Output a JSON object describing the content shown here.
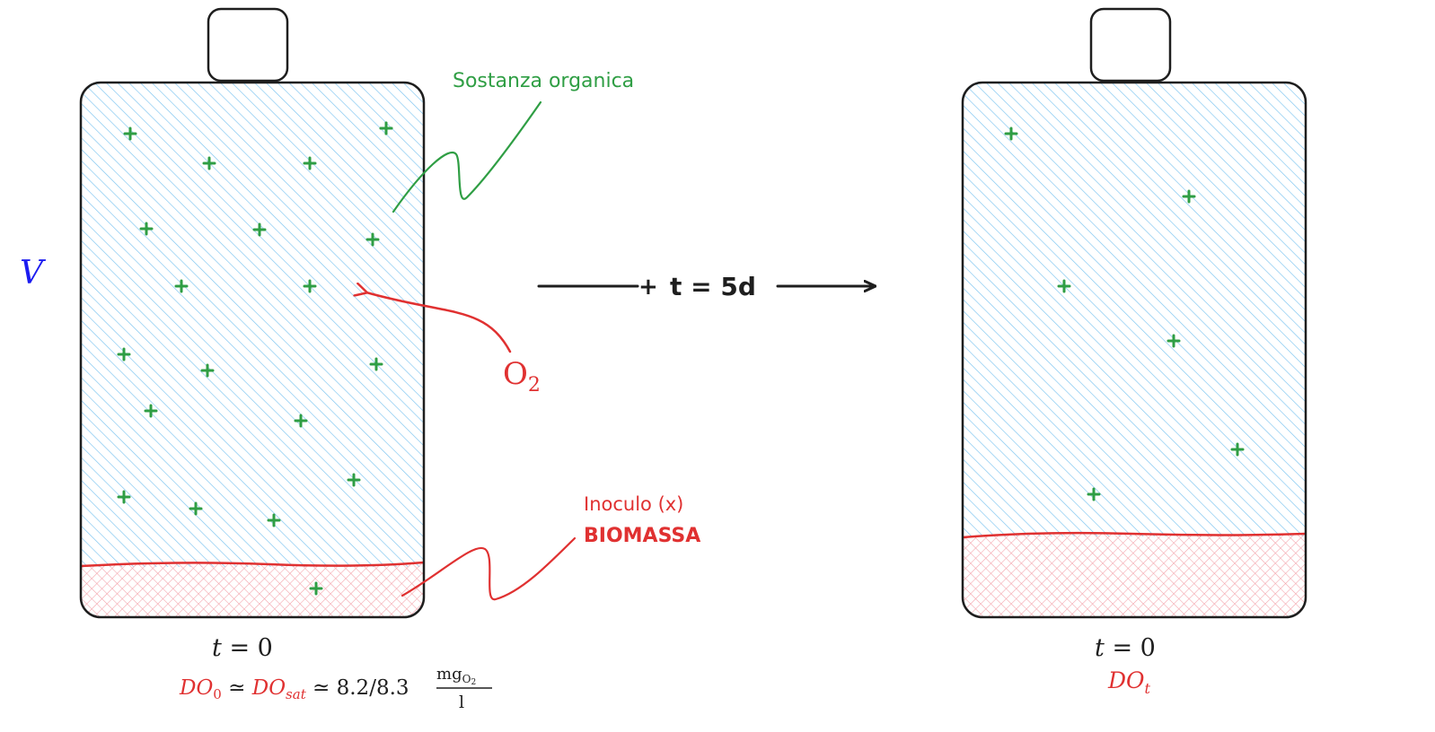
{
  "colors": {
    "water": "#7cc4f0",
    "biomass": "#f3a0a8",
    "outline": "#1e1e1e",
    "organic": "#2f9e44",
    "red": "#e03131",
    "blue": "#1c1cf0",
    "arrow": "#1e1e1e"
  },
  "labels": {
    "volume": "V",
    "organic_matter": "Sostanza organica",
    "oxygen_O": "O",
    "oxygen_sub": "2",
    "inoculum_line1": "Inoculo (x)",
    "inoculum_line2": "BIOMASSA",
    "arrow_text": "t = 5d"
  },
  "left_bottle": {
    "time_t": "t",
    "time_eq": " = 0",
    "do0_D": "DO",
    "do0_sub": "0",
    "approx1": " ≃ ",
    "dosat_D": "DO",
    "dosat_sub": "sat",
    "approx2": " ≃ 8.2/8.3 ",
    "unit_num": "mg",
    "unit_num_sub": "O",
    "unit_num_subsub": "2",
    "unit_den": "l",
    "plus_count": 20
  },
  "right_bottle": {
    "time_t": "t",
    "time_eq": " = 0",
    "dot_D": "DO",
    "dot_sub": "t",
    "plus_count": 6
  },
  "icons": {
    "plus": "plus-icon",
    "arrow": "right-arrow-icon",
    "callout": "squiggle-leader-icon"
  }
}
